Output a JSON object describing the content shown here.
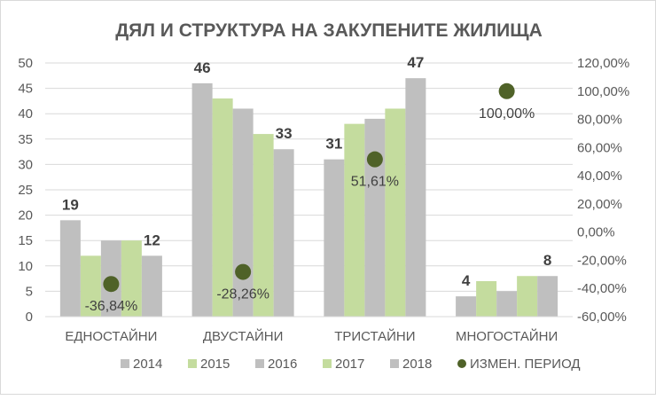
{
  "chart_data": {
    "type": "bar",
    "title": "ДЯЛ И СТРУКТУРА НА ЗАКУПЕНИТЕ ЖИЛИЩА",
    "categories": [
      "ЕДНОСТАЙНИ",
      "ДВУСТАЙНИ",
      "ТРИСТАЙНИ",
      "МНОГОСТАЙНИ"
    ],
    "series": [
      {
        "name": "2014",
        "values": [
          19,
          46,
          31,
          4
        ],
        "color": "#BFBFBF"
      },
      {
        "name": "2015",
        "values": [
          12,
          43,
          38,
          7
        ],
        "color": "#C4DC9E"
      },
      {
        "name": "2016",
        "values": [
          15,
          41,
          39,
          5
        ],
        "color": "#BFBFBF"
      },
      {
        "name": "2017",
        "values": [
          15,
          36,
          41,
          8
        ],
        "color": "#C4DC9E"
      },
      {
        "name": "2018",
        "values": [
          12,
          33,
          47,
          8
        ],
        "color": "#BFBFBF"
      }
    ],
    "change_series": {
      "name": "ИЗМЕН. ПЕРИОД",
      "values": [
        -36.84,
        -28.26,
        51.61,
        100.0
      ],
      "labels": [
        "-36,84%",
        "-28,26%",
        "51,61%",
        "100,00%"
      ],
      "color": "#4F6228",
      "axis": "right"
    },
    "data_labels": {
      "first": [
        "19",
        "46",
        "31",
        "4"
      ],
      "last": [
        "12",
        "33",
        "47",
        "8"
      ]
    },
    "ylim": [
      0,
      50
    ],
    "yticks": [
      "0",
      "5",
      "10",
      "15",
      "20",
      "25",
      "30",
      "35",
      "40",
      "45",
      "50"
    ],
    "y2lim": [
      -60,
      120
    ],
    "y2ticks": [
      "-60,00%",
      "-40,00%",
      "-20,00%",
      "0,00%",
      "20,00%",
      "40,00%",
      "60,00%",
      "80,00%",
      "100,00%",
      "120,00%"
    ],
    "grid": true,
    "legend": "bottom"
  }
}
